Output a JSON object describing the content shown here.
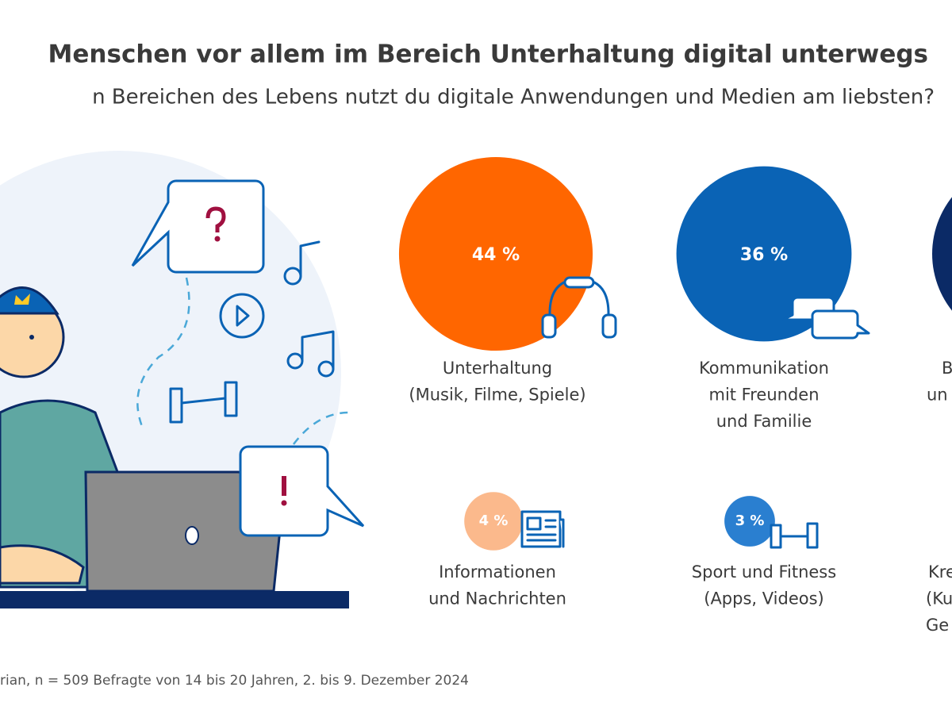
{
  "chart_data": {
    "type": "bubble",
    "title": "Menschen vor allem im Bereich Unterhaltung digital unterwegs",
    "subtitle": "n Bereichen des Lebens nutzt du digitale Anwendungen und Medien am liebsten?",
    "source": "rian, n = 509 Befragte von 14 bis 20 Jahren, 2. bis 9. Dezember 2024",
    "categories": [
      [
        "Unterhaltung",
        "(Musik, Filme, Spiele)"
      ],
      [
        "Kommunikation",
        "mit Freunden",
        "und Familie"
      ],
      [
        "B",
        "un"
      ],
      [
        "Informationen",
        "und Nachrichten"
      ],
      [
        "Sport und Fitness",
        "(Apps, Videos)"
      ],
      [
        "Kre",
        "(Ku",
        "Ge"
      ]
    ],
    "values": [
      44,
      36,
      null,
      4,
      3,
      null
    ],
    "value_labels": [
      "44 %",
      "36 %",
      null,
      "4 %",
      "3 %",
      null
    ],
    "colors": [
      "#ff6600",
      "#0a63b5",
      "#0b2a66",
      "#fbb98c",
      "#2a7fd0",
      "#a9c7ea"
    ]
  }
}
